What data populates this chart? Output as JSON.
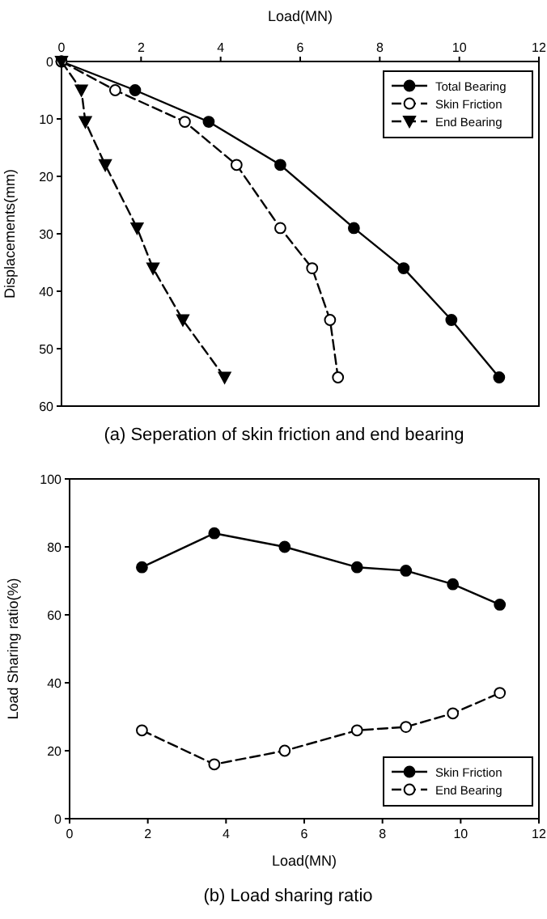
{
  "chart_data": [
    {
      "type": "line",
      "title": "(a) Seperation of skin friction and end bearing",
      "xlabel": "Load(MN)",
      "ylabel": "Displacements(mm)",
      "xlim": [
        0,
        12
      ],
      "xticks": [
        0,
        2,
        4,
        6,
        8,
        10,
        12
      ],
      "ylim": [
        60,
        0
      ],
      "yticks": [
        0,
        10,
        20,
        30,
        40,
        50,
        60
      ],
      "legend": "top right",
      "grid": false,
      "series": [
        {
          "name": "Total Bearing",
          "color": "#000000",
          "line_style": "solid",
          "marker": "circle",
          "x": [
            0,
            1.85,
            3.7,
            5.5,
            7.35,
            8.6,
            9.8,
            11
          ],
          "values": [
            0,
            5,
            10.5,
            18,
            29,
            36,
            45,
            55
          ]
        },
        {
          "name": "Skin Friction",
          "color": "#000000",
          "line_style": "dashed",
          "marker": "circle",
          "x": [
            0,
            1.35,
            3.1,
            4.4,
            5.5,
            6.3,
            6.75,
            6.95
          ],
          "values": [
            0,
            5,
            10.5,
            18,
            29,
            36,
            45,
            55
          ]
        },
        {
          "name": "End Bearing",
          "color": "#000000",
          "line_style": "dashed",
          "marker": "triangle",
          "x": [
            0,
            0.5,
            0.6,
            1.1,
            1.9,
            2.3,
            3.05,
            4.1
          ],
          "values": [
            0,
            5,
            10.5,
            18,
            29,
            36,
            45,
            55
          ]
        }
      ]
    },
    {
      "type": "line",
      "title": "(b) Load sharing ratio",
      "xlabel": "Load(MN)",
      "ylabel": "Load Sharing ratio(%)",
      "xlim": [
        0,
        12
      ],
      "xticks": [
        0,
        2,
        4,
        6,
        8,
        10,
        12
      ],
      "ylim": [
        0,
        100
      ],
      "yticks": [
        0,
        20,
        40,
        60,
        80,
        100
      ],
      "legend": "bottom right",
      "grid": false,
      "series": [
        {
          "name": "Skin Friction",
          "color": "#000000",
          "line_style": "solid",
          "marker": "circle",
          "x": [
            1.85,
            3.7,
            5.5,
            7.35,
            8.6,
            9.8,
            11
          ],
          "values": [
            74,
            84,
            80,
            74,
            73,
            69,
            63
          ]
        },
        {
          "name": "End Bearing",
          "color": "#000000",
          "line_style": "dashed",
          "marker": "circle",
          "x": [
            1.85,
            3.7,
            5.5,
            7.35,
            8.6,
            9.8,
            11
          ],
          "values": [
            26,
            16,
            20,
            26,
            27,
            31,
            37
          ]
        }
      ]
    }
  ]
}
